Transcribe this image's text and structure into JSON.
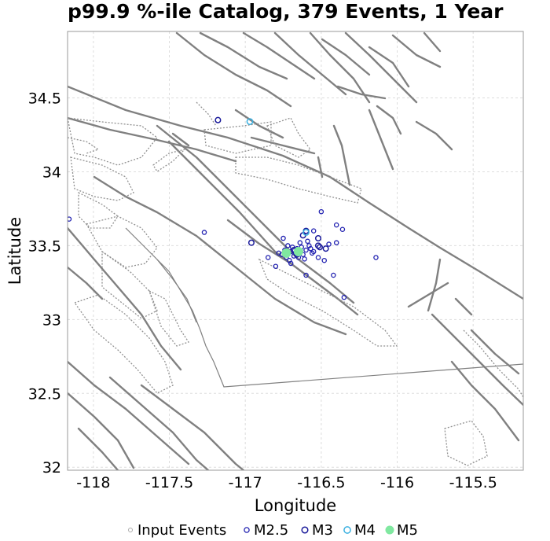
{
  "chart_data": {
    "type": "scatter",
    "title": "p99.9 %-ile Catalog, 379 Events, 1 Year",
    "xlabel": "Longitude",
    "ylabel": "Latitude",
    "xlim": [
      -118.17,
      -115.17
    ],
    "ylim": [
      31.98,
      34.95
    ],
    "xticks": [
      -118,
      -117.5,
      -117,
      -116.5,
      -116,
      -115.5
    ],
    "xtick_labels": [
      "-118",
      "-117.5",
      "-117",
      "-116.5",
      "-116",
      "-115.5"
    ],
    "yticks": [
      32,
      32.5,
      33,
      33.5,
      34,
      34.5
    ],
    "ytick_labels": [
      "32",
      "32.5",
      "33",
      "33.5",
      "34",
      "34.5"
    ],
    "grid": true,
    "legend_position": "bottom",
    "colors": {
      "fault": "#808080",
      "input": "#aaaaaa",
      "m25": "#2020b0",
      "m3": "#1a1a9a",
      "m4": "#3ab0e0",
      "m5": "#80e8a0"
    },
    "series": [
      {
        "name": "Input Events",
        "marker": "input",
        "points": []
      },
      {
        "name": "M2.5",
        "marker": "m25",
        "points": [
          [
            -118.16,
            33.68
          ],
          [
            -117.27,
            33.59
          ],
          [
            -116.55,
            33.6
          ],
          [
            -116.5,
            33.73
          ],
          [
            -116.4,
            33.64
          ],
          [
            -116.36,
            33.61
          ],
          [
            -116.14,
            33.42
          ],
          [
            -116.35,
            33.15
          ],
          [
            -116.42,
            33.3
          ],
          [
            -116.85,
            33.42
          ],
          [
            -116.8,
            33.36
          ],
          [
            -116.7,
            33.38
          ],
          [
            -116.6,
            33.3
          ],
          [
            -116.45,
            33.51
          ],
          [
            -116.4,
            33.52
          ],
          [
            -116.52,
            33.42
          ],
          [
            -116.48,
            33.4
          ],
          [
            -116.75,
            33.55
          ],
          [
            -116.72,
            33.5
          ],
          [
            -116.7,
            33.46
          ],
          [
            -116.68,
            33.43
          ],
          [
            -116.66,
            33.48
          ],
          [
            -116.64,
            33.52
          ],
          [
            -116.62,
            33.44
          ],
          [
            -116.6,
            33.47
          ],
          [
            -116.58,
            33.5
          ],
          [
            -116.56,
            33.45
          ],
          [
            -116.76,
            33.44
          ],
          [
            -116.78,
            33.45
          ],
          [
            -116.74,
            33.47
          ],
          [
            -116.73,
            33.42
          ],
          [
            -116.71,
            33.4
          ],
          [
            -116.69,
            33.49
          ],
          [
            -116.67,
            33.45
          ],
          [
            -116.65,
            33.42
          ],
          [
            -116.63,
            33.49
          ],
          [
            -116.61,
            33.41
          ],
          [
            -116.59,
            33.53
          ],
          [
            -116.57,
            33.48
          ],
          [
            -116.55,
            33.46
          ]
        ]
      },
      {
        "name": "M3",
        "marker": "m3",
        "points": [
          [
            -117.18,
            34.35
          ],
          [
            -116.96,
            33.52
          ],
          [
            -116.52,
            33.55
          ],
          [
            -116.47,
            33.48
          ],
          [
            -116.52,
            33.5
          ],
          [
            -116.51,
            33.49
          ],
          [
            -116.62,
            33.57
          ],
          [
            -116.6,
            33.6
          ],
          [
            -116.68,
            33.47
          ],
          [
            -116.66,
            33.44
          ],
          [
            -116.64,
            33.46
          ],
          [
            -116.72,
            33.45
          ]
        ]
      },
      {
        "name": "M4",
        "marker": "m4",
        "points": [
          [
            -116.97,
            34.34
          ],
          [
            -116.6,
            33.59
          ]
        ]
      },
      {
        "name": "M5",
        "marker": "m5",
        "points": [
          [
            -116.73,
            33.45
          ],
          [
            -116.65,
            33.46
          ]
        ]
      }
    ],
    "legend": [
      {
        "label": "Input Events",
        "marker": "input"
      },
      {
        "label": "M2.5",
        "marker": "m25"
      },
      {
        "label": "M3",
        "marker": "m3"
      },
      {
        "label": "M4",
        "marker": "m4"
      },
      {
        "label": "M5",
        "marker": "m5"
      }
    ]
  }
}
